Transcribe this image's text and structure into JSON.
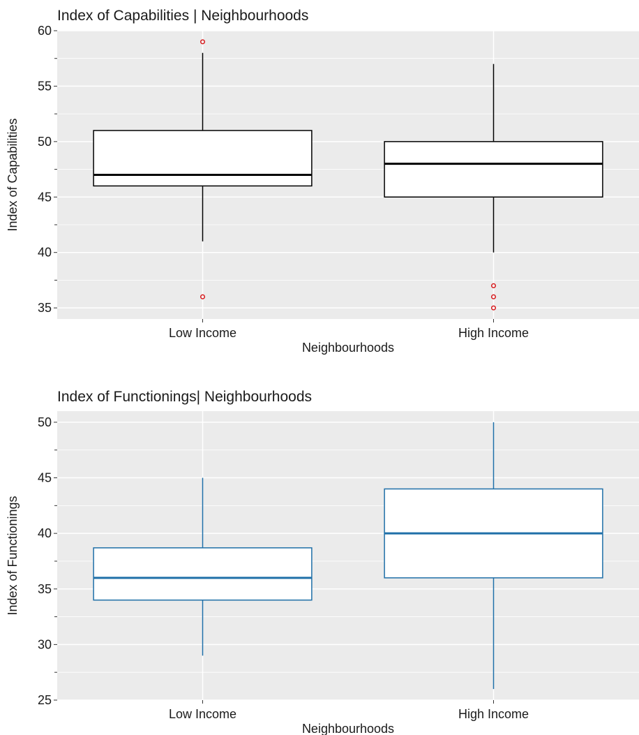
{
  "chart_data": [
    {
      "type": "boxplot",
      "title": "Index of Capabilities | Neighbourhoods",
      "xlabel": "Neighbourhoods",
      "ylabel": "Index of Capabilities",
      "ylim": [
        34,
        60
      ],
      "yticks": [
        35,
        40,
        45,
        50,
        55,
        60
      ],
      "grid": true,
      "box_color": "#000000",
      "outlier_color": "#d7191c",
      "panel_bg": "#ebebeb",
      "categories": [
        "Low Income",
        "High Income"
      ],
      "boxes": [
        {
          "category": "Low Income",
          "whisker_low": 41,
          "q1": 46,
          "median": 47,
          "q3": 51,
          "whisker_high": 58,
          "outliers": [
            36,
            59
          ]
        },
        {
          "category": "High Income",
          "whisker_low": 40,
          "q1": 45,
          "median": 48,
          "q3": 50,
          "whisker_high": 57,
          "outliers": [
            35,
            36,
            37
          ]
        }
      ]
    },
    {
      "type": "boxplot",
      "title": "Index of Functionings| Neighbourhoods",
      "xlabel": "Neighbourhoods",
      "ylabel": "Index of Functionings",
      "ylim": [
        25,
        51
      ],
      "yticks": [
        25,
        30,
        35,
        40,
        45,
        50
      ],
      "grid": true,
      "box_color": "#1f6fa8",
      "outlier_color": "#d7191c",
      "panel_bg": "#ebebeb",
      "categories": [
        "Low Income",
        "High Income"
      ],
      "boxes": [
        {
          "category": "Low Income",
          "whisker_low": 29,
          "q1": 34,
          "median": 36,
          "q3": 38.7,
          "whisker_high": 45,
          "outliers": []
        },
        {
          "category": "High Income",
          "whisker_low": 26,
          "q1": 36,
          "median": 40,
          "q3": 44,
          "whisker_high": 50,
          "outliers": []
        }
      ]
    }
  ]
}
